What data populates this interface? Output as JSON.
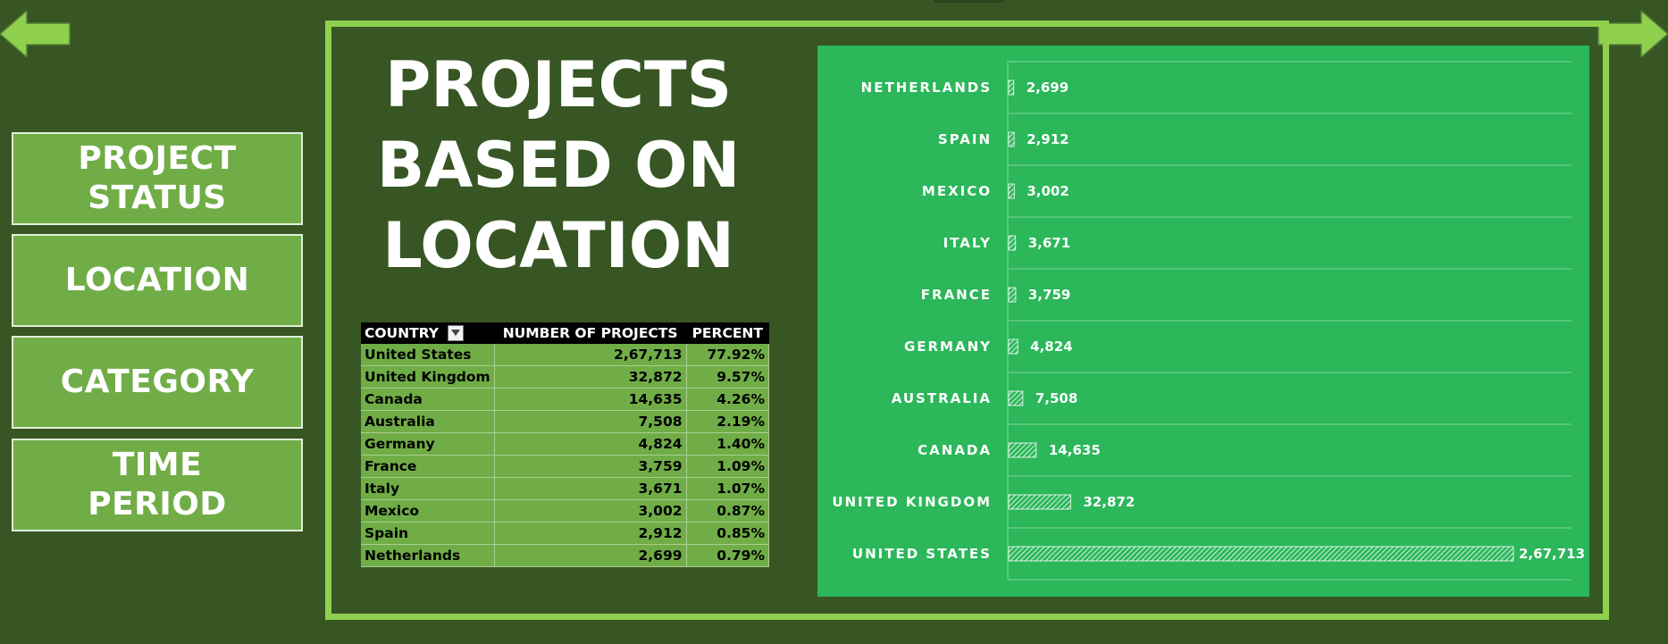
{
  "nav": {
    "buttons": [
      "PROJECT STATUS",
      "LOCATION",
      "CATEGORY",
      "TIME PERIOD"
    ]
  },
  "icons": {
    "back": "left-arrow-icon",
    "forward": "right-arrow-icon",
    "filter": "sort-filter-icon"
  },
  "title": "PROJECTS BASED ON LOCATION",
  "title_lines": [
    "PROJECTS",
    "BASED ON",
    "LOCATION"
  ],
  "table": {
    "headers": [
      "COUNTRY",
      "NUMBER OF PROJECTS",
      "PERCENT"
    ],
    "rows": [
      [
        "United States",
        "2,67,713",
        "77.92%"
      ],
      [
        "United Kingdom",
        "32,872",
        "9.57%"
      ],
      [
        "Canada",
        "14,635",
        "4.26%"
      ],
      [
        "Australia",
        "7,508",
        "2.19%"
      ],
      [
        "Germany",
        "4,824",
        "1.40%"
      ],
      [
        "France",
        "3,759",
        "1.09%"
      ],
      [
        "Italy",
        "3,671",
        "1.07%"
      ],
      [
        "Mexico",
        "3,002",
        "0.87%"
      ],
      [
        "Spain",
        "2,912",
        "0.85%"
      ],
      [
        "Netherlands",
        "2,699",
        "0.79%"
      ]
    ]
  },
  "colors": {
    "background": "#375623",
    "frame": "#8fd14f",
    "button": "#70ad47",
    "chart_panel": "#2bb75a",
    "table_header": "#000000",
    "table_cell": "#70ad47"
  },
  "chart_data": {
    "type": "bar",
    "orientation": "horizontal",
    "categories": [
      "NETHERLANDS",
      "SPAIN",
      "MEXICO",
      "ITALY",
      "FRANCE",
      "GERMANY",
      "AUSTRALIA",
      "CANADA",
      "UNITED KINGDOM",
      "UNITED STATES"
    ],
    "values": [
      2699,
      2912,
      3002,
      3671,
      3759,
      4824,
      7508,
      14635,
      32872,
      267713
    ],
    "value_labels": [
      "2,699",
      "2,912",
      "3,002",
      "3,671",
      "3,759",
      "4,824",
      "7,508",
      "14,635",
      "32,872",
      "2,67,713"
    ],
    "bar_fill": "diagonal-hatch white on green",
    "xlim": [
      0,
      267713
    ],
    "grid": true,
    "legend": "none"
  }
}
